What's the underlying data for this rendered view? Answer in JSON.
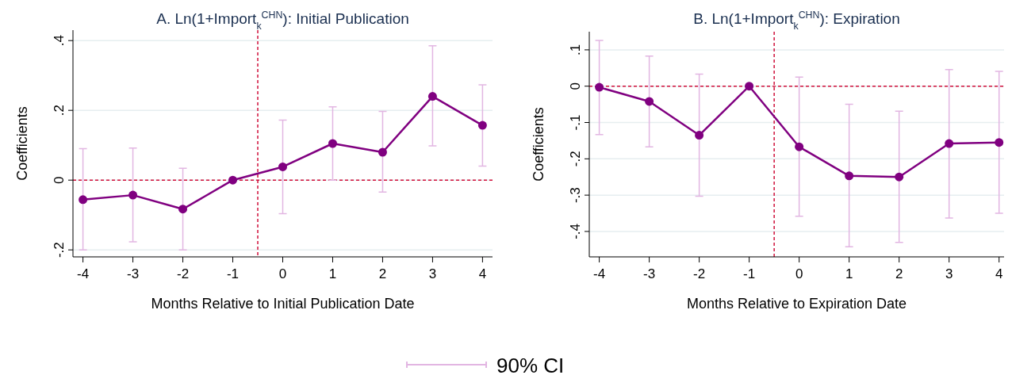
{
  "chart_data": [
    {
      "type": "line",
      "title": "A. Ln(1+Import$_{k}$$^{CHN}$): Initial Publication",
      "xlabel": "Months Relative to Initial Publication Date",
      "ylabel": "Coefficients",
      "x": [
        -4,
        -3,
        -2,
        -1,
        0,
        1,
        2,
        3,
        4
      ],
      "xlim": [
        -4.2,
        4.2
      ],
      "xticks": [
        -4,
        -3,
        -2,
        -1,
        0,
        1,
        2,
        3,
        4
      ],
      "ylim": [
        -0.22,
        0.43
      ],
      "yticks": [
        {
          "value": -0.2,
          "label": "-.2"
        },
        0,
        {
          "value": 0.2,
          "label": ".2"
        },
        {
          "value": 0.4,
          "label": ".4"
        }
      ],
      "grid": "y",
      "marker": "circle",
      "line_style": "solid",
      "series": [
        {
          "color": "#800080",
          "values": [
            -0.056,
            -0.043,
            -0.083,
            0,
            0.038,
            0.105,
            0.08,
            0.24,
            0.157
          ],
          "errors": [
            [
              -0.2,
              0.09
            ],
            [
              -0.177,
              0.092
            ],
            [
              -0.2,
              0.034
            ],
            null,
            [
              -0.096,
              0.172
            ],
            [
              0,
              0.21
            ],
            [
              -0.034,
              0.197
            ],
            [
              0.098,
              0.385
            ],
            [
              0.04,
              0.273
            ]
          ]
        }
      ],
      "ref_lines": [
        {
          "axis": "x",
          "value": -0.5,
          "color": "#d0103a",
          "line_style": "dashed"
        },
        {
          "axis": "y",
          "value": 0,
          "color": "#d0103a",
          "line_style": "dashed"
        }
      ],
      "annotations": [
        "90% CI"
      ]
    },
    {
      "type": "line",
      "title": "B. Ln(1+Import$_{k}$$^{CHN}$): Expiration",
      "xlabel": "Months Relative to Expiration Date",
      "ylabel": "Coefficients",
      "x": [
        -4,
        -3,
        -2,
        -1,
        0,
        1,
        2,
        3,
        4
      ],
      "xlim": [
        -4.2,
        4.1
      ],
      "xticks": [
        -4,
        -3,
        -2,
        -1,
        0,
        1,
        2,
        3,
        4
      ],
      "ylim": [
        -0.47,
        0.15
      ],
      "yticks": [
        {
          "value": -0.4,
          "label": "-.4"
        },
        {
          "value": -0.3,
          "label": "-.3"
        },
        {
          "value": -0.2,
          "label": "-.2"
        },
        {
          "value": -0.1,
          "label": "-.1"
        },
        0,
        {
          "value": 0.1,
          "label": ".1"
        }
      ],
      "grid": "y",
      "marker": "circle",
      "line_style": "solid",
      "series": [
        {
          "color": "#800080",
          "values": [
            -0.003,
            -0.042,
            -0.135,
            0,
            -0.167,
            -0.247,
            -0.25,
            -0.158,
            -0.155
          ],
          "errors": [
            [
              -0.133,
              0.126
            ],
            [
              -0.167,
              0.083
            ],
            [
              -0.303,
              0.033
            ],
            null,
            [
              -0.358,
              0.025
            ],
            [
              -0.442,
              -0.05
            ],
            [
              -0.43,
              -0.069
            ],
            [
              -0.363,
              0.046
            ],
            [
              -0.35,
              0.041
            ]
          ]
        }
      ],
      "ref_lines": [
        {
          "axis": "x",
          "value": -0.5,
          "color": "#d0103a",
          "line_style": "dashed"
        },
        {
          "axis": "y",
          "value": 0,
          "color": "#d0103a",
          "line_style": "dashed"
        }
      ]
    }
  ]
}
